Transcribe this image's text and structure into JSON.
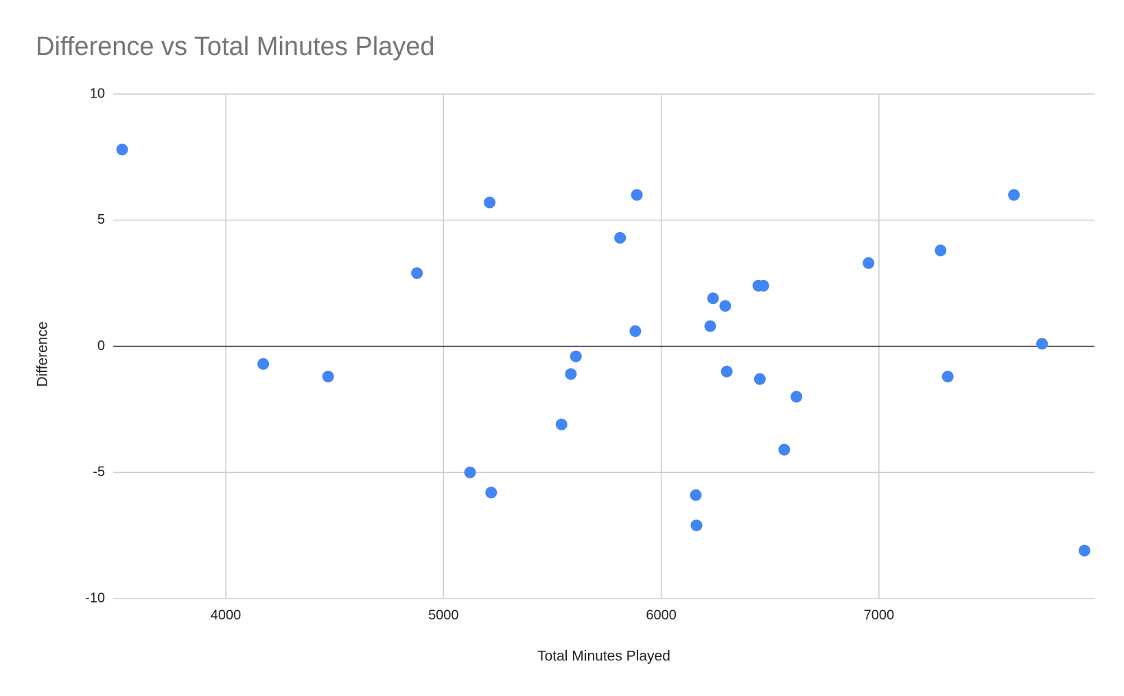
{
  "chart_data": {
    "type": "scatter",
    "title": "Difference vs Total Minutes Played",
    "x_label": "Total Minutes Played",
    "y_label": "Difference",
    "color": "#4285f4",
    "grid": true,
    "xlim": [
      3483,
      7990
    ],
    "ylim": [
      -10,
      10
    ],
    "xticks": [
      4000,
      5000,
      6000,
      7000
    ],
    "yticks": [
      10,
      5,
      0,
      -5,
      -10
    ],
    "x": [
      3524,
      4172,
      4470,
      4878,
      5122,
      5212,
      5219,
      5542,
      5585,
      5608,
      5811,
      5881,
      5888,
      6159,
      6162,
      6225,
      6238,
      6294,
      6301,
      6446,
      6469,
      6453,
      6565,
      6621,
      6952,
      7283,
      7316,
      7620,
      7749,
      7944
    ],
    "values": [
      7.8,
      -0.7,
      -1.2,
      2.9,
      -5.0,
      5.7,
      -5.8,
      -3.1,
      -1.1,
      -0.4,
      4.3,
      0.6,
      6.0,
      -5.9,
      -7.1,
      0.8,
      1.9,
      1.6,
      -1.0,
      2.4,
      2.4,
      -1.3,
      -4.1,
      -2.0,
      3.3,
      3.8,
      -1.2,
      6.0,
      0.1,
      -8.1
    ]
  }
}
